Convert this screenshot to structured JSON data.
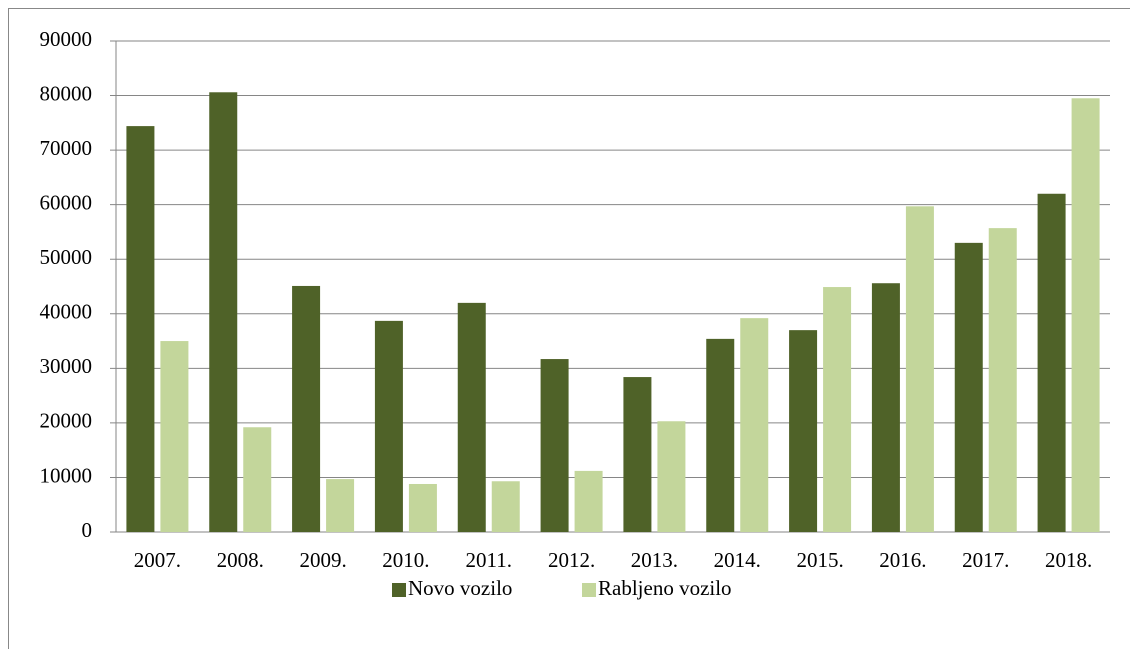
{
  "chart_data": {
    "type": "bar",
    "categories": [
      "2007.",
      "2008.",
      "2009.",
      "2010.",
      "2011.",
      "2012.",
      "2013.",
      "2014.",
      "2015.",
      "2016.",
      "2017.",
      "2018."
    ],
    "series": [
      {
        "name": "Novo vozilo",
        "color": "#4f6228",
        "values": [
          74400,
          80600,
          45100,
          38700,
          42000,
          31700,
          28400,
          35400,
          37000,
          45600,
          53000,
          62000
        ]
      },
      {
        "name": "Rabljeno vozilo",
        "color": "#c3d69b",
        "values": [
          35000,
          19200,
          9700,
          8800,
          9300,
          11200,
          20300,
          39200,
          44900,
          59700,
          55700,
          79500
        ]
      }
    ],
    "ylim": [
      0,
      90000
    ],
    "yticks": [
      0,
      10000,
      20000,
      30000,
      40000,
      50000,
      60000,
      70000,
      80000,
      90000
    ],
    "grid": true,
    "legend": "bottom"
  }
}
